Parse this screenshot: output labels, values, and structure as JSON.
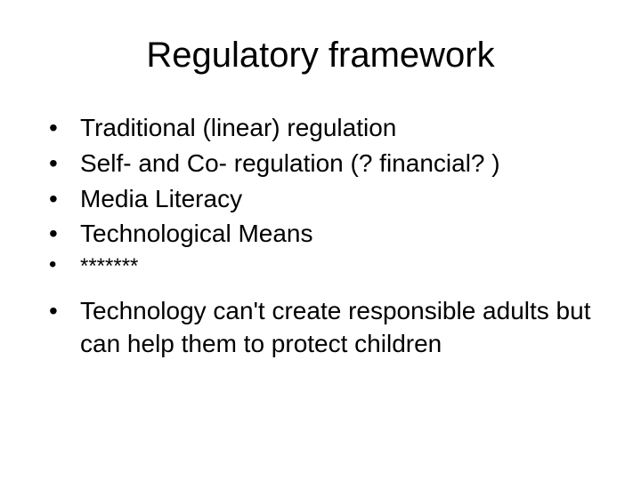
{
  "slide": {
    "title": "Regulatory framework",
    "bullets": [
      {
        "text": "Traditional (linear) regulation"
      },
      {
        "text": "Self- and Co- regulation (? financial? )"
      },
      {
        "text": "Media Literacy"
      },
      {
        "text": "Technological Means"
      },
      {
        "text": "*******"
      },
      {
        "text": "Technology can't create responsible adults but can help them to protect children"
      }
    ]
  },
  "style": {
    "background_color": "#ffffff",
    "title_color": "#000000",
    "title_fontsize": 40,
    "body_color": "#000000",
    "body_fontsize": 28,
    "bullet_char": "•",
    "font_family": "Arial"
  }
}
